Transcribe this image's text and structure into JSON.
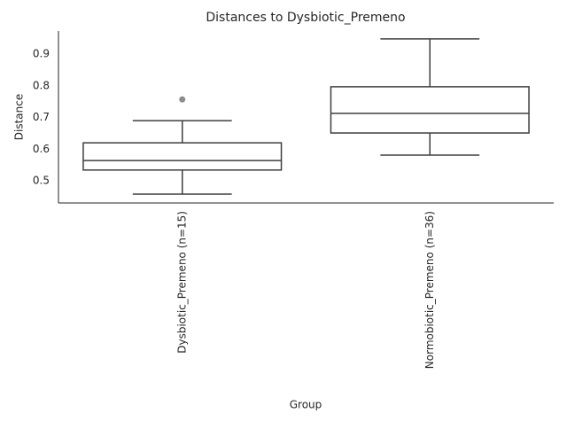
{
  "chart_data": {
    "type": "box",
    "title": "Distances to Dysbiotic_Premeno",
    "xlabel": "Group",
    "ylabel": "Distance",
    "categories": [
      "Dysbiotic_Premeno (n=15)",
      "Normobiotic_Premeno (n=36)"
    ],
    "boxes": [
      {
        "whislo": 0.458,
        "q1": 0.534,
        "med": 0.564,
        "q3": 0.62,
        "whishi": 0.69,
        "fliers": [
          0.757
        ]
      },
      {
        "whislo": 0.581,
        "q1": 0.651,
        "med": 0.713,
        "q3": 0.797,
        "whishi": 0.948,
        "fliers": []
      }
    ],
    "color": "#ffffff",
    "edge_color": "#3f3f3f",
    "flier_color": "#8c8c8c",
    "ylim": [
      0.43,
      0.973
    ],
    "yticks": [
      0.5,
      0.6,
      0.7,
      0.8,
      0.9
    ],
    "grid": false
  }
}
